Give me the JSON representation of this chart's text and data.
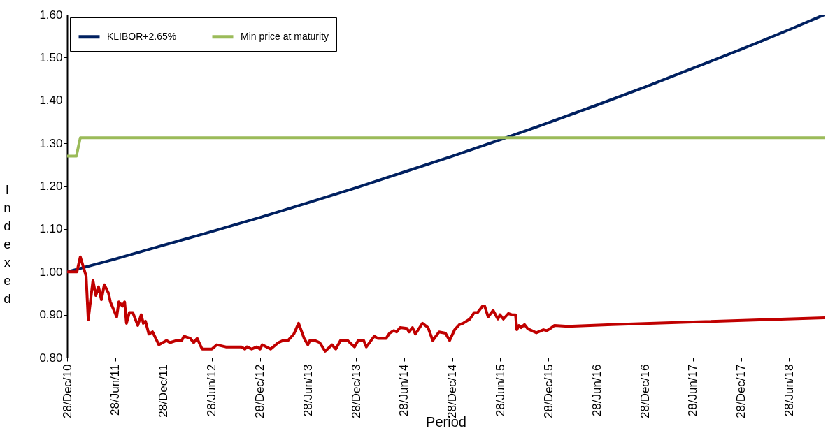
{
  "chart_data": {
    "type": "line",
    "xlabel": "Period",
    "ylabel": "Indexed",
    "legend": "top left",
    "grid": false,
    "marker": "none",
    "line_style": "solid",
    "xlim": [
      "2010-12-28",
      "2018-11-09"
    ],
    "xticks": [
      {
        "value": "2010-12-28",
        "label": "28/Dec/10"
      },
      {
        "value": "2011-06-28",
        "label": "28/Jun/11"
      },
      {
        "value": "2011-12-28",
        "label": "28/Dec/11"
      },
      {
        "value": "2012-06-28",
        "label": "28/Jun/12"
      },
      {
        "value": "2012-12-28",
        "label": "28/Dec/12"
      },
      {
        "value": "2013-06-28",
        "label": "28/Jun/13"
      },
      {
        "value": "2013-12-28",
        "label": "28/Dec/13"
      },
      {
        "value": "2014-06-28",
        "label": "28/Jun/14"
      },
      {
        "value": "2014-12-28",
        "label": "28/Dec/14"
      },
      {
        "value": "2015-06-28",
        "label": "28/Jun/15"
      },
      {
        "value": "2015-12-28",
        "label": "28/Dec/15"
      },
      {
        "value": "2016-06-28",
        "label": "28/Jun/16"
      },
      {
        "value": "2016-12-28",
        "label": "28/Dec/16"
      },
      {
        "value": "2017-06-28",
        "label": "28/Jun/17"
      },
      {
        "value": "2017-12-28",
        "label": "28/Dec/17"
      },
      {
        "value": "2018-06-28",
        "label": "28/Jun/18"
      }
    ],
    "ylim": [
      0.8,
      1.6
    ],
    "yticks": [
      {
        "value": 0.8,
        "label": "0.80"
      },
      {
        "value": 0.9,
        "label": "0.90"
      },
      {
        "value": 1.0,
        "label": "1.00"
      },
      {
        "value": 1.1,
        "label": "1.10"
      },
      {
        "value": 1.2,
        "label": "1.20"
      },
      {
        "value": 1.3,
        "label": "1.30"
      },
      {
        "value": 1.4,
        "label": "1.40"
      },
      {
        "value": 1.5,
        "label": "1.50"
      },
      {
        "value": 1.6,
        "label": "1.60"
      }
    ],
    "series": [
      {
        "color": "#c00000",
        "x": [
          "2010-12-31",
          "2011-02-03",
          "2011-02-16",
          "2011-03-10",
          "2011-03-18",
          "2011-04-05",
          "2011-04-16",
          "2011-04-26",
          "2011-05-07",
          "2011-05-18",
          "2011-06-03",
          "2011-06-10",
          "2011-07-04",
          "2011-07-12",
          "2011-07-26",
          "2011-08-03",
          "2011-08-10",
          "2011-08-21",
          "2011-09-03",
          "2011-09-22",
          "2011-10-05",
          "2011-10-13",
          "2011-10-21",
          "2011-11-03",
          "2011-11-17",
          "2011-12-11",
          "2011-12-26",
          "2012-01-09",
          "2012-01-22",
          "2012-02-17",
          "2012-03-07",
          "2012-03-15",
          "2012-04-08",
          "2012-04-21",
          "2012-05-04",
          "2012-05-23",
          "2012-06-29",
          "2012-07-18",
          "2012-08-21",
          "2012-10-19",
          "2012-11-01",
          "2012-11-09",
          "2012-11-27",
          "2012-12-16",
          "2012-12-29",
          "2013-01-06",
          "2013-02-07",
          "2013-03-08",
          "2013-03-27",
          "2013-04-14",
          "2013-05-06",
          "2013-05-24",
          "2013-06-14",
          "2013-06-28",
          "2013-07-06",
          "2013-07-24",
          "2013-08-12",
          "2013-09-02",
          "2013-09-28",
          "2013-10-12",
          "2013-10-30",
          "2013-11-26",
          "2013-12-22",
          "2014-01-05",
          "2014-01-26",
          "2014-02-05",
          "2014-03-07",
          "2014-03-20",
          "2014-04-21",
          "2014-05-04",
          "2014-05-20",
          "2014-05-31",
          "2014-06-13",
          "2014-07-09",
          "2014-07-17",
          "2014-07-30",
          "2014-08-10",
          "2014-09-06",
          "2014-09-27",
          "2014-10-15",
          "2014-11-08",
          "2014-12-02",
          "2014-12-18",
          "2015-01-06",
          "2015-01-24",
          "2015-02-07",
          "2015-03-05",
          "2015-03-21",
          "2015-04-03",
          "2015-04-22",
          "2015-04-30",
          "2015-05-13",
          "2015-06-01",
          "2015-06-19",
          "2015-06-27",
          "2015-07-10",
          "2015-07-29",
          "2015-08-11",
          "2015-08-25",
          "2015-08-30",
          "2015-09-07",
          "2015-09-15",
          "2015-09-28",
          "2015-10-11",
          "2015-11-12",
          "2015-12-09",
          "2015-12-22",
          "2016-01-04",
          "2016-01-20",
          "2016-03-11",
          "2016-08-25",
          "2017-06-28",
          "2018-11-09"
        ],
        "values": [
          1.0,
          1.0,
          1.035,
          0.99,
          0.888,
          0.98,
          0.945,
          0.965,
          0.935,
          0.97,
          0.95,
          0.93,
          0.895,
          0.93,
          0.92,
          0.93,
          0.88,
          0.905,
          0.905,
          0.875,
          0.9,
          0.88,
          0.885,
          0.855,
          0.86,
          0.83,
          0.835,
          0.84,
          0.835,
          0.84,
          0.84,
          0.85,
          0.845,
          0.835,
          0.845,
          0.82,
          0.82,
          0.83,
          0.825,
          0.825,
          0.82,
          0.825,
          0.82,
          0.825,
          0.82,
          0.83,
          0.82,
          0.835,
          0.84,
          0.84,
          0.855,
          0.88,
          0.845,
          0.83,
          0.84,
          0.84,
          0.835,
          0.815,
          0.83,
          0.82,
          0.84,
          0.84,
          0.825,
          0.84,
          0.84,
          0.825,
          0.85,
          0.845,
          0.845,
          0.857,
          0.863,
          0.86,
          0.87,
          0.868,
          0.86,
          0.87,
          0.855,
          0.88,
          0.87,
          0.84,
          0.86,
          0.857,
          0.84,
          0.865,
          0.877,
          0.88,
          0.89,
          0.905,
          0.905,
          0.92,
          0.92,
          0.895,
          0.91,
          0.89,
          0.9,
          0.89,
          0.903,
          0.9,
          0.9,
          0.865,
          0.875,
          0.87,
          0.877,
          0.867,
          0.858,
          0.865,
          0.863,
          0.868,
          0.875,
          0.873,
          0.877,
          0.883,
          0.893
        ]
      },
      {
        "name": "KLIBOR+2.65%",
        "color": "#002060",
        "x": [
          "2010-12-28",
          "2011-06-28",
          "2011-12-28",
          "2012-06-28",
          "2012-12-28",
          "2013-06-28",
          "2013-12-28",
          "2014-06-28",
          "2014-12-28",
          "2015-06-28",
          "2015-12-28",
          "2016-06-28",
          "2016-12-28",
          "2017-06-28",
          "2017-12-28",
          "2018-06-28",
          "2018-11-09"
        ],
        "values": [
          1.0,
          1.03,
          1.062,
          1.094,
          1.127,
          1.161,
          1.196,
          1.233,
          1.27,
          1.308,
          1.348,
          1.389,
          1.431,
          1.475,
          1.519,
          1.565,
          1.6
        ]
      },
      {
        "name": "Min price at maturity",
        "color": "#9bbb59",
        "x": [
          "2010-12-28",
          "2011-02-01",
          "2011-02-16",
          "2018-11-09"
        ],
        "values": [
          1.27,
          1.27,
          1.313,
          1.313
        ]
      }
    ]
  }
}
